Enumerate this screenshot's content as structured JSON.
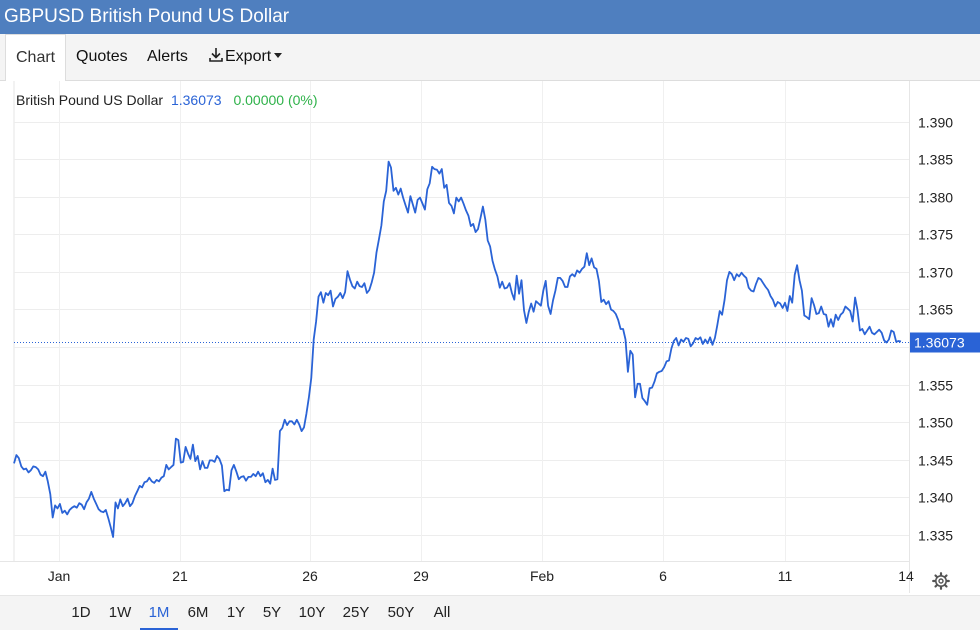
{
  "window": {
    "title": "GBPUSD British Pound US Dollar"
  },
  "tabs": [
    {
      "label": "Chart",
      "active": true
    },
    {
      "label": "Quotes"
    },
    {
      "label": "Alerts"
    },
    {
      "label": "Export",
      "icon": "download-icon"
    }
  ],
  "legend": {
    "name": "British Pound US Dollar",
    "last": "1.36073",
    "change": "0.00000 (0%)"
  },
  "colors": {
    "accent": "#2a63d6",
    "positive": "#2fb24a",
    "header": "#4f7fbf"
  },
  "ranges": [
    {
      "label": "1D"
    },
    {
      "label": "1W"
    },
    {
      "label": "1M",
      "active": true
    },
    {
      "label": "6M"
    },
    {
      "label": "1Y"
    },
    {
      "label": "5Y"
    },
    {
      "label": "10Y"
    },
    {
      "label": "25Y"
    },
    {
      "label": "50Y"
    },
    {
      "label": "All"
    }
  ],
  "chart_data": {
    "type": "line",
    "xlabel": "",
    "ylabel": "",
    "x_ticks": [
      "Jan",
      "21",
      "26",
      "29",
      "Feb",
      "6",
      "11",
      "14"
    ],
    "y_ticks": [
      1.335,
      1.34,
      1.345,
      1.35,
      1.355,
      1.36,
      1.365,
      1.37,
      1.375,
      1.38,
      1.385,
      1.39
    ],
    "ylim": [
      1.3315,
      1.3925
    ],
    "grid": true,
    "last_value_label": "1.36073",
    "series": [
      {
        "values": [
          1.3445,
          1.3456,
          1.3452,
          1.3441,
          1.3437,
          1.3438,
          1.3433,
          1.3436,
          1.3441,
          1.344,
          1.3437,
          1.343,
          1.3428,
          1.3434,
          1.3421,
          1.3404,
          1.3373,
          1.3389,
          1.3385,
          1.3391,
          1.3379,
          1.3382,
          1.3377,
          1.3383,
          1.3386,
          1.3388,
          1.3386,
          1.3392,
          1.339,
          1.3384,
          1.3393,
          1.3398,
          1.3407,
          1.3398,
          1.3391,
          1.3384,
          1.3381,
          1.338,
          1.3383,
          1.3372,
          1.336,
          1.3347,
          1.3393,
          1.3385,
          1.3397,
          1.3388,
          1.3392,
          1.3398,
          1.3388,
          1.3392,
          1.3401,
          1.3408,
          1.3415,
          1.3413,
          1.342,
          1.3421,
          1.3426,
          1.3421,
          1.3419,
          1.3423,
          1.3421,
          1.3426,
          1.3428,
          1.3443,
          1.3437,
          1.344,
          1.3443,
          1.3478,
          1.3476,
          1.3446,
          1.3447,
          1.3467,
          1.3458,
          1.3451,
          1.347,
          1.3448,
          1.3455,
          1.3437,
          1.3448,
          1.3439,
          1.3439,
          1.3449,
          1.3449,
          1.3447,
          1.3455,
          1.3451,
          1.3442,
          1.3408,
          1.341,
          1.3409,
          1.3436,
          1.3443,
          1.3434,
          1.3424,
          1.3427,
          1.3428,
          1.3422,
          1.3427,
          1.3427,
          1.3431,
          1.3428,
          1.3434,
          1.3428,
          1.3432,
          1.342,
          1.3423,
          1.3418,
          1.3438,
          1.3423,
          1.3424,
          1.3488,
          1.3492,
          1.3503,
          1.3496,
          1.3501,
          1.3501,
          1.3497,
          1.3503,
          1.3497,
          1.3488,
          1.3493,
          1.3511,
          1.3533,
          1.3559,
          1.361,
          1.3634,
          1.3667,
          1.3673,
          1.3659,
          1.3672,
          1.3669,
          1.3675,
          1.3654,
          1.3664,
          1.3667,
          1.3672,
          1.3665,
          1.3673,
          1.3701,
          1.369,
          1.3681,
          1.3678,
          1.3687,
          1.3681,
          1.368,
          1.3685,
          1.3672,
          1.3676,
          1.3686,
          1.3699,
          1.3726,
          1.3744,
          1.3762,
          1.3794,
          1.3808,
          1.3847,
          1.3839,
          1.3808,
          1.3812,
          1.3803,
          1.3811,
          1.3799,
          1.3789,
          1.3779,
          1.3801,
          1.379,
          1.3779,
          1.3796,
          1.3799,
          1.3791,
          1.3783,
          1.381,
          1.3818,
          1.384,
          1.3837,
          1.3836,
          1.3831,
          1.3837,
          1.3812,
          1.3816,
          1.3792,
          1.3788,
          1.3778,
          1.3799,
          1.3794,
          1.3799,
          1.3791,
          1.3782,
          1.3775,
          1.3761,
          1.3764,
          1.3753,
          1.3757,
          1.3772,
          1.3787,
          1.377,
          1.3742,
          1.3734,
          1.3715,
          1.3703,
          1.3694,
          1.3679,
          1.3687,
          1.3678,
          1.3679,
          1.3685,
          1.3672,
          1.3663,
          1.3695,
          1.3671,
          1.3689,
          1.3649,
          1.3632,
          1.3647,
          1.3658,
          1.3647,
          1.3661,
          1.3658,
          1.3655,
          1.3675,
          1.3688,
          1.3655,
          1.3644,
          1.3662,
          1.3675,
          1.3692,
          1.3692,
          1.3688,
          1.368,
          1.368,
          1.3694,
          1.3697,
          1.3694,
          1.3702,
          1.3699,
          1.3704,
          1.3707,
          1.3725,
          1.3709,
          1.3718,
          1.3706,
          1.3704,
          1.3688,
          1.366,
          1.3663,
          1.3657,
          1.3661,
          1.365,
          1.3648,
          1.3644,
          1.3636,
          1.3624,
          1.3624,
          1.361,
          1.3567,
          1.3595,
          1.359,
          1.3533,
          1.3551,
          1.3551,
          1.3532,
          1.3528,
          1.3523,
          1.3545,
          1.3546,
          1.3554,
          1.3565,
          1.3567,
          1.3568,
          1.3573,
          1.3581,
          1.3582,
          1.3598,
          1.3608,
          1.3612,
          1.3602,
          1.361,
          1.3607,
          1.3612,
          1.3611,
          1.3601,
          1.3605,
          1.3612,
          1.361,
          1.3613,
          1.3604,
          1.361,
          1.3605,
          1.3613,
          1.3603,
          1.3612,
          1.3629,
          1.3648,
          1.3643,
          1.3663,
          1.3689,
          1.37,
          1.3697,
          1.3689,
          1.3697,
          1.3694,
          1.3699,
          1.3695,
          1.3692,
          1.3679,
          1.3675,
          1.3674,
          1.3684,
          1.3692,
          1.369,
          1.3685,
          1.368,
          1.3676,
          1.3668,
          1.3663,
          1.3654,
          1.366,
          1.3658,
          1.3652,
          1.3659,
          1.3648,
          1.3668,
          1.3659,
          1.3696,
          1.3709,
          1.3689,
          1.3675,
          1.3642,
          1.364,
          1.3637,
          1.3665,
          1.3656,
          1.3644,
          1.3645,
          1.3654,
          1.3644,
          1.3643,
          1.3627,
          1.3637,
          1.3627,
          1.3643,
          1.3636,
          1.3643,
          1.3646,
          1.3654,
          1.3651,
          1.3648,
          1.3634,
          1.3666,
          1.3649,
          1.3622,
          1.3624,
          1.3617,
          1.3622,
          1.3627,
          1.3619,
          1.3617,
          1.362,
          1.3623,
          1.3619,
          1.3609,
          1.3606,
          1.361,
          1.3622,
          1.362,
          1.3607,
          1.3608,
          1.36073
        ]
      }
    ]
  }
}
